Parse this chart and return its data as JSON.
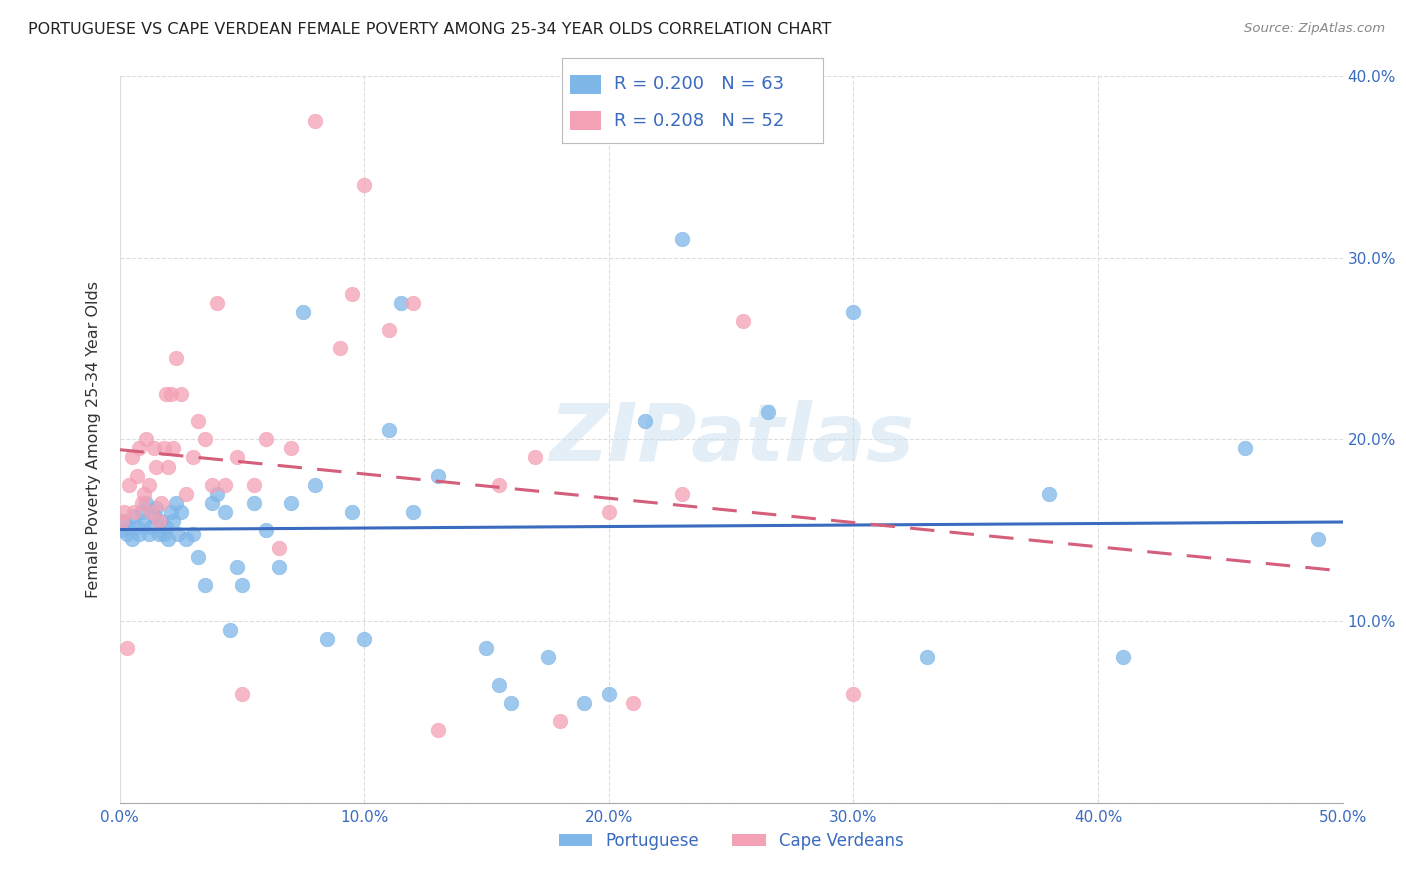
{
  "title": "PORTUGUESE VS CAPE VERDEAN FEMALE POVERTY AMONG 25-34 YEAR OLDS CORRELATION CHART",
  "source": "Source: ZipAtlas.com",
  "ylabel": "Female Poverty Among 25-34 Year Olds",
  "xlim": [
    0,
    0.5
  ],
  "ylim": [
    0,
    0.4
  ],
  "xticks": [
    0.0,
    0.1,
    0.2,
    0.3,
    0.4,
    0.5
  ],
  "yticks": [
    0.0,
    0.1,
    0.2,
    0.3,
    0.4
  ],
  "xtick_labels": [
    "0.0%",
    "10.0%",
    "20.0%",
    "30.0%",
    "40.0%",
    "50.0%"
  ],
  "ytick_labels_right": [
    "",
    "10.0%",
    "20.0%",
    "30.0%",
    "40.0%"
  ],
  "portuguese_color": "#7eb6e8",
  "cape_verdean_color": "#f4a0b5",
  "portuguese_line_color": "#3a6bbf",
  "cape_verdean_line_color": "#d45f7a",
  "legend_text_color": "#3a6bbf",
  "title_color": "#333333",
  "background_color": "#ffffff",
  "grid_color": "#dddddd",
  "watermark": "ZIPatlas",
  "portuguese_R": "0.200",
  "portuguese_N": "63",
  "cape_verdean_R": "0.208",
  "cape_verdean_N": "52",
  "portuguese_x": [
    0.001,
    0.002,
    0.003,
    0.004,
    0.005,
    0.006,
    0.007,
    0.008,
    0.009,
    0.01,
    0.011,
    0.012,
    0.013,
    0.014,
    0.015,
    0.016,
    0.017,
    0.018,
    0.019,
    0.02,
    0.021,
    0.022,
    0.023,
    0.024,
    0.025,
    0.027,
    0.03,
    0.032,
    0.035,
    0.038,
    0.04,
    0.043,
    0.045,
    0.048,
    0.05,
    0.055,
    0.06,
    0.065,
    0.07,
    0.075,
    0.08,
    0.085,
    0.095,
    0.1,
    0.11,
    0.115,
    0.12,
    0.13,
    0.15,
    0.155,
    0.16,
    0.175,
    0.19,
    0.2,
    0.215,
    0.23,
    0.265,
    0.3,
    0.33,
    0.38,
    0.41,
    0.46,
    0.49
  ],
  "portuguese_y": [
    0.15,
    0.155,
    0.148,
    0.152,
    0.145,
    0.158,
    0.152,
    0.148,
    0.16,
    0.155,
    0.165,
    0.148,
    0.152,
    0.158,
    0.162,
    0.148,
    0.155,
    0.148,
    0.152,
    0.145,
    0.16,
    0.155,
    0.165,
    0.148,
    0.16,
    0.145,
    0.148,
    0.135,
    0.12,
    0.165,
    0.17,
    0.16,
    0.095,
    0.13,
    0.12,
    0.165,
    0.15,
    0.13,
    0.165,
    0.27,
    0.175,
    0.09,
    0.16,
    0.09,
    0.205,
    0.275,
    0.16,
    0.18,
    0.085,
    0.065,
    0.055,
    0.08,
    0.055,
    0.06,
    0.21,
    0.31,
    0.215,
    0.27,
    0.08,
    0.17,
    0.08,
    0.195,
    0.145
  ],
  "cape_verdean_x": [
    0.001,
    0.002,
    0.003,
    0.004,
    0.005,
    0.006,
    0.007,
    0.008,
    0.009,
    0.01,
    0.011,
    0.012,
    0.013,
    0.014,
    0.015,
    0.016,
    0.017,
    0.018,
    0.019,
    0.02,
    0.021,
    0.022,
    0.023,
    0.025,
    0.027,
    0.03,
    0.032,
    0.035,
    0.038,
    0.04,
    0.043,
    0.048,
    0.05,
    0.055,
    0.06,
    0.065,
    0.07,
    0.08,
    0.09,
    0.095,
    0.1,
    0.11,
    0.12,
    0.13,
    0.155,
    0.17,
    0.18,
    0.2,
    0.21,
    0.23,
    0.255,
    0.3
  ],
  "cape_verdean_y": [
    0.155,
    0.16,
    0.085,
    0.175,
    0.19,
    0.16,
    0.18,
    0.195,
    0.165,
    0.17,
    0.2,
    0.175,
    0.16,
    0.195,
    0.185,
    0.155,
    0.165,
    0.195,
    0.225,
    0.185,
    0.225,
    0.195,
    0.245,
    0.225,
    0.17,
    0.19,
    0.21,
    0.2,
    0.175,
    0.275,
    0.175,
    0.19,
    0.06,
    0.175,
    0.2,
    0.14,
    0.195,
    0.375,
    0.25,
    0.28,
    0.34,
    0.26,
    0.275,
    0.04,
    0.175,
    0.19,
    0.045,
    0.16,
    0.055,
    0.17,
    0.265,
    0.06
  ]
}
